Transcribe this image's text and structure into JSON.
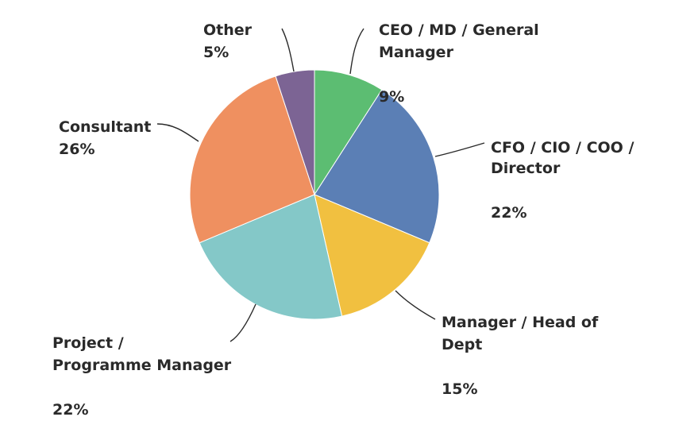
{
  "chart_data": {
    "type": "pie",
    "title": "",
    "slices": [
      {
        "label_lines": [
          "CEO / MD / General",
          "Manager"
        ],
        "value": 9,
        "value_label": "9%",
        "color": "#5cbd72"
      },
      {
        "label_lines": [
          "CFO / CIO / COO /",
          "Director"
        ],
        "value": 22,
        "value_label": "22%",
        "color": "#5b7fb5"
      },
      {
        "label_lines": [
          "Manager / Head of",
          "Dept"
        ],
        "value": 15,
        "value_label": "15%",
        "color": "#f1c040"
      },
      {
        "label_lines": [
          "Project /",
          "Programme Manager"
        ],
        "value": 22,
        "value_label": "22%",
        "color": "#84c8c8"
      },
      {
        "label_lines": [
          "Consultant"
        ],
        "value": 26,
        "value_label": "26%",
        "color": "#ef9060"
      },
      {
        "label_lines": [
          "Other"
        ],
        "value": 5,
        "value_label": "5%",
        "color": "#7c6494"
      }
    ]
  }
}
